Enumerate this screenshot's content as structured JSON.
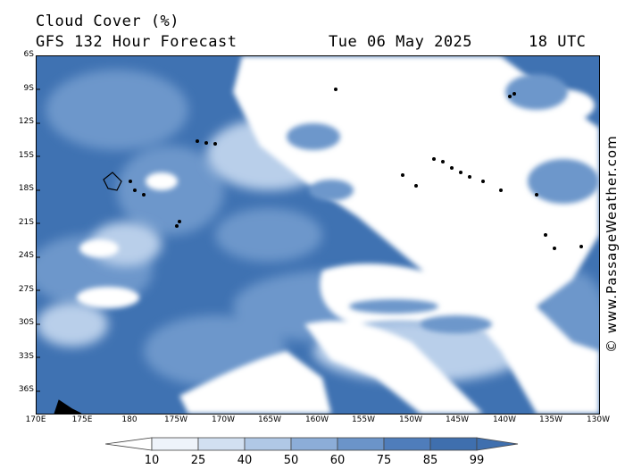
{
  "header": {
    "title": "Cloud Cover (%)",
    "subtitle": "GFS 132 Hour Forecast",
    "date": "Tue 06 May 2025",
    "time": "18 UTC"
  },
  "map": {
    "lat_labels": [
      "6S",
      "9S",
      "12S",
      "15S",
      "18S",
      "21S",
      "24S",
      "27S",
      "30S",
      "33S",
      "36S"
    ],
    "lon_labels": [
      "170E",
      "175E",
      "180",
      "175W",
      "170W",
      "165W",
      "160W",
      "155W",
      "150W",
      "145W",
      "140W",
      "135W",
      "130W"
    ]
  },
  "legend": {
    "labels": [
      "10",
      "25",
      "40",
      "50",
      "60",
      "75",
      "85",
      "99"
    ],
    "colors": [
      "#ffffff",
      "#eef3fa",
      "#d2e0f1",
      "#b0c8e6",
      "#8cadd8",
      "#6b94c9",
      "#4f7dbb",
      "#3f6fae"
    ]
  },
  "credit": "© www.PassageWeather.com",
  "colors": {
    "deep_cloud": "#3f72b2",
    "mid_cloud": "#6d97cb",
    "light_cloud": "#b9cfea",
    "clear": "#ffffff",
    "land": "#000000"
  }
}
